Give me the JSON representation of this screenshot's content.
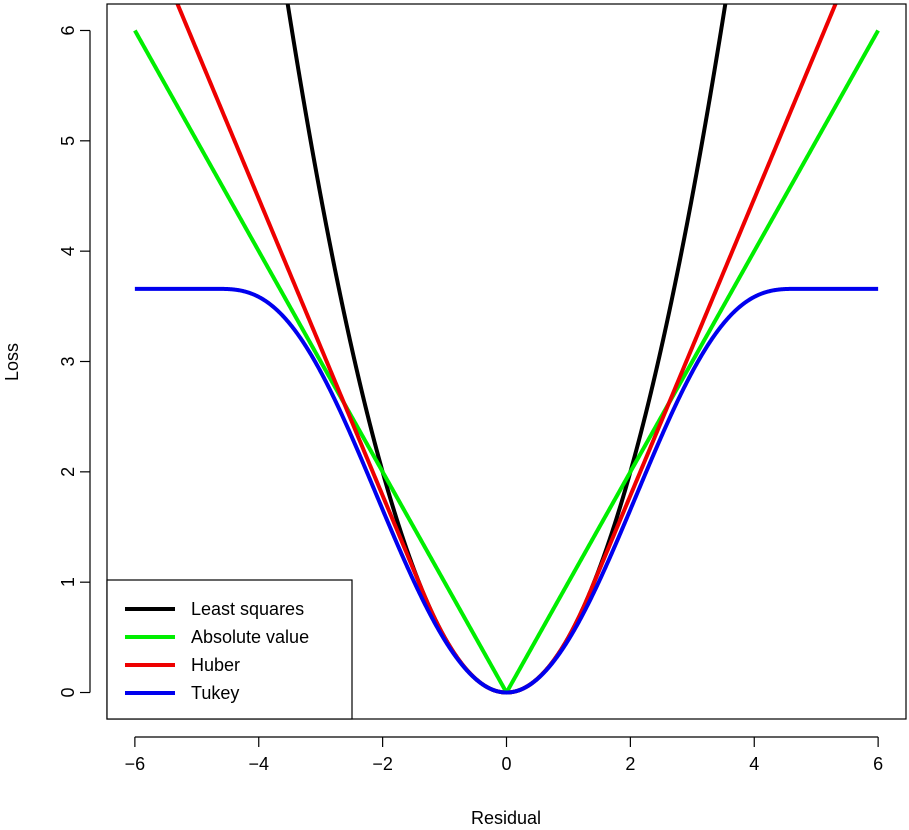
{
  "chart_data": {
    "type": "line",
    "xlabel": "Residual",
    "ylabel": "Loss",
    "xlim": [
      -6.45,
      6.45
    ],
    "ylim": [
      -0.24,
      6.24
    ],
    "xticks": [
      -6,
      -4,
      -2,
      0,
      2,
      4,
      6
    ],
    "xtick_labels": [
      "−6",
      "−4",
      "−2",
      "0",
      "2",
      "4",
      "6"
    ],
    "yticks": [
      0,
      1,
      2,
      3,
      4,
      5,
      6
    ],
    "ytick_labels": [
      "0",
      "1",
      "2",
      "3",
      "4",
      "5",
      "6"
    ],
    "x_range": [
      -6,
      6
    ],
    "legend_position": "bottom-left",
    "series": [
      {
        "name": "Least squares",
        "color": "#000000",
        "function": "least_squares"
      },
      {
        "name": "Absolute value",
        "color": "#00ee00",
        "function": "absolute"
      },
      {
        "name": "Huber",
        "color": "#ee0000",
        "function": "huber",
        "k": 1.345
      },
      {
        "name": "Tukey",
        "color": "#0000ee",
        "function": "tukey",
        "c": 4.685
      }
    ]
  }
}
